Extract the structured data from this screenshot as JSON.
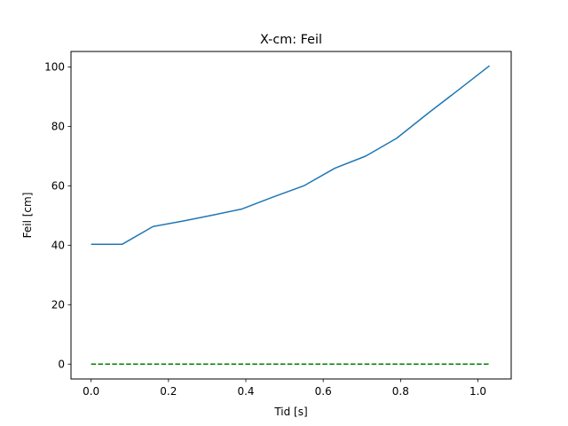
{
  "chart_data": {
    "type": "line",
    "title": "X-cm: Feil",
    "xlabel": "Tid [s]",
    "ylabel": "Feil [cm]",
    "xlim": [
      -0.052,
      1.086
    ],
    "ylim": [
      -5.0,
      105.2
    ],
    "x_ticks": [
      0.0,
      0.2,
      0.4,
      0.6,
      0.8,
      1.0
    ],
    "x_tick_labels": [
      "0.0",
      "0.2",
      "0.4",
      "0.6",
      "0.8",
      "1.0"
    ],
    "y_ticks": [
      0,
      20,
      40,
      60,
      80,
      100
    ],
    "y_tick_labels": [
      "0",
      "20",
      "40",
      "60",
      "80",
      "100"
    ],
    "grid": false,
    "legend": "none",
    "series": [
      {
        "color": "#1f77b4",
        "style": "solid",
        "x": [
          0.0,
          0.08,
          0.16,
          0.24,
          0.32,
          0.39,
          0.47,
          0.55,
          0.63,
          0.71,
          0.79,
          0.87,
          0.95,
          1.03
        ],
        "y": [
          40.3,
          40.3,
          46.3,
          48.2,
          50.3,
          52.2,
          56.2,
          60.0,
          65.9,
          70.0,
          76.0,
          84.3,
          92.3,
          100.4
        ]
      },
      {
        "color": "#008000",
        "style": "dashed",
        "x": [
          0.0,
          1.03
        ],
        "y": [
          0.0,
          0.0
        ]
      }
    ]
  }
}
